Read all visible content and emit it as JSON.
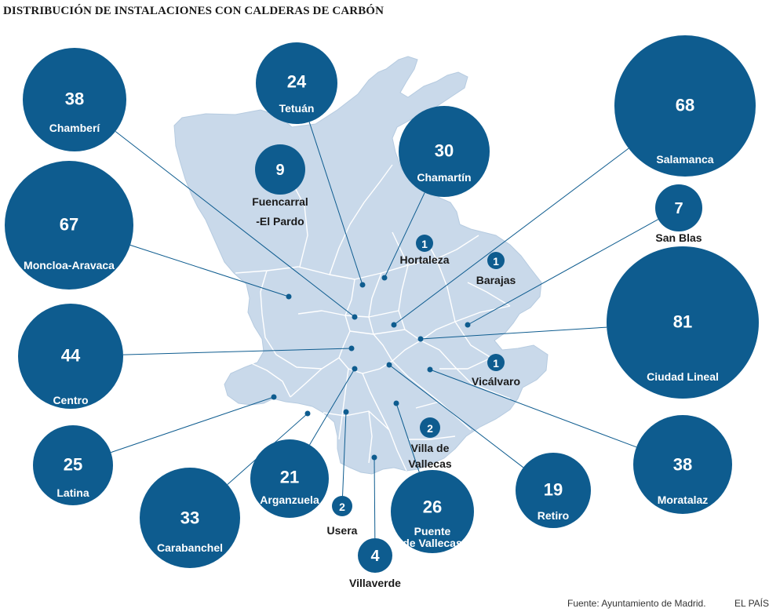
{
  "title": "DISTRIBUCIÓN DE INSTALACIONES CON CALDERAS DE CARBÓN",
  "footer": {
    "source": "Fuente: Ayuntamiento de Madrid.",
    "brand": "EL PAÍS"
  },
  "colors": {
    "bubble": "#0e5c8f",
    "map_fill": "#c9d9ea",
    "map_lines": "#ffffff",
    "leader_line": "#0e5c8f"
  },
  "districts": [
    {
      "name": "Chamberí",
      "value": 38
    },
    {
      "name": "Tetuán",
      "value": 24
    },
    {
      "name": "Chamartín",
      "value": 30
    },
    {
      "name": "Salamanca",
      "value": 68
    },
    {
      "name": "Fuencarral\n-El Pardo",
      "value": 9
    },
    {
      "name": "San Blas",
      "value": 7
    },
    {
      "name": "Moncloa-Aravaca",
      "value": 67
    },
    {
      "name": "Hortaleza",
      "value": 1
    },
    {
      "name": "Barajas",
      "value": 1
    },
    {
      "name": "Ciudad Lineal",
      "value": 81
    },
    {
      "name": "Centro",
      "value": 44
    },
    {
      "name": "Vicálvaro",
      "value": 1
    },
    {
      "name": "Villa de\nVallecas",
      "value": 2
    },
    {
      "name": "Latina",
      "value": 25
    },
    {
      "name": "Arganzuela",
      "value": 21
    },
    {
      "name": "Retiro",
      "value": 19
    },
    {
      "name": "Moratalaz",
      "value": 38
    },
    {
      "name": "Carabanchel",
      "value": 33
    },
    {
      "name": "Usera",
      "value": 2
    },
    {
      "name": "Puente\nde Vallecas",
      "value": 26
    },
    {
      "name": "Villaverde",
      "value": 4
    }
  ]
}
